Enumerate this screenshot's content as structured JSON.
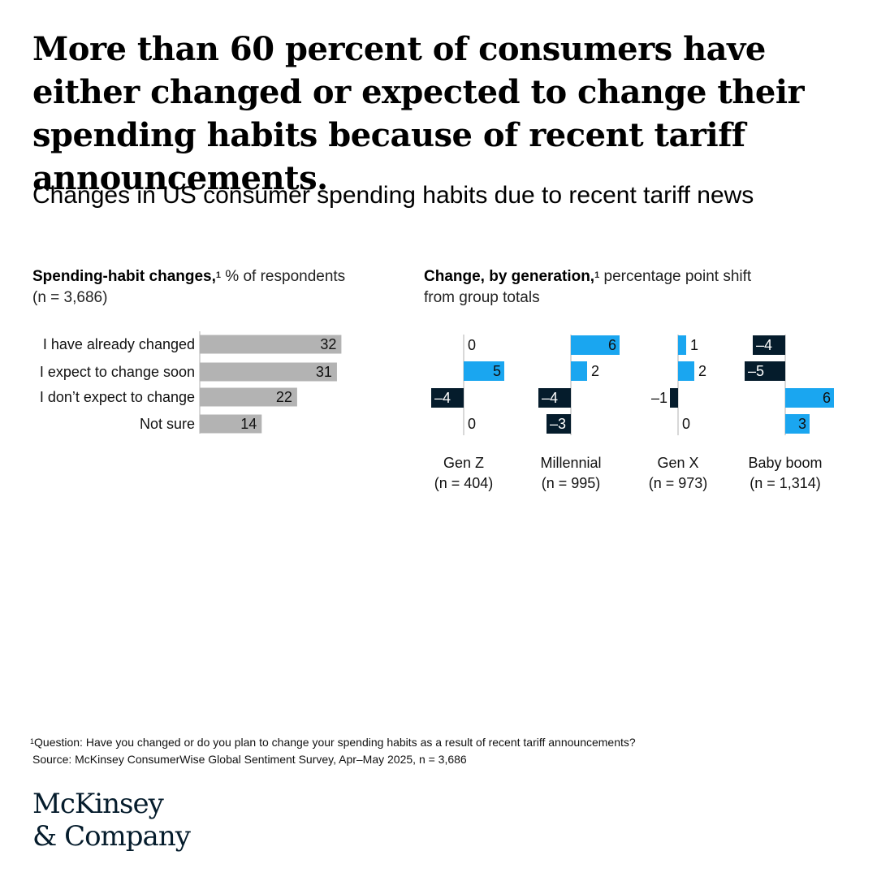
{
  "headline": "More than 60 percent of consumers have either changed or expected to change their spending habits because of recent tariff announcements.",
  "subtitle": "Changes in US consumer spending habits due to recent tariff news",
  "left_panel": {
    "title_bold": "Spending-habit changes,",
    "title_sup": "1",
    "title_rest": " % of respondents",
    "title_line2": "(n = 3,686)"
  },
  "right_panel": {
    "title_bold": "Change, by generation,",
    "title_sup": "1",
    "title_rest": " percentage point shift",
    "title_line2": "from group totals"
  },
  "colors": {
    "gray_bar": "#b3b3b3",
    "positive": "#1aa6f0",
    "negative": "#051c2c",
    "axis": "#b0b0b0"
  },
  "chart_data": [
    {
      "type": "bar",
      "orientation": "horizontal",
      "categories": [
        "I have already changed",
        "I expect to change soon",
        "I don’t expect to change",
        "Not sure"
      ],
      "values": [
        32,
        31,
        22,
        14
      ]
    },
    {
      "type": "bar",
      "orientation": "horizontal",
      "categories": [
        "I have already changed",
        "I expect to change soon",
        "I don’t expect to change",
        "Not sure"
      ],
      "series": [
        {
          "name": "Gen Z",
          "sample": "(n = 404)",
          "values": [
            0,
            5,
            -4,
            0
          ]
        },
        {
          "name": "Millennial",
          "sample": "(n = 995)",
          "values": [
            6,
            2,
            -4,
            -3
          ]
        },
        {
          "name": "Gen X",
          "sample": "(n = 973)",
          "values": [
            1,
            2,
            -1,
            0
          ]
        },
        {
          "name": "Baby boom",
          "sample": "(n = 1,314)",
          "values": [
            -4,
            -5,
            6,
            3
          ]
        }
      ]
    }
  ],
  "footnote": {
    "sup": "1",
    "question": "Question: Have you changed or do you plan to change your spending habits as a result of recent tariff announcements?",
    "source": "Source: McKinsey ConsumerWise Global Sentiment Survey, Apr–May 2025, n = 3,686"
  },
  "logo": {
    "line1": "McKinsey",
    "line2": "& Company"
  }
}
